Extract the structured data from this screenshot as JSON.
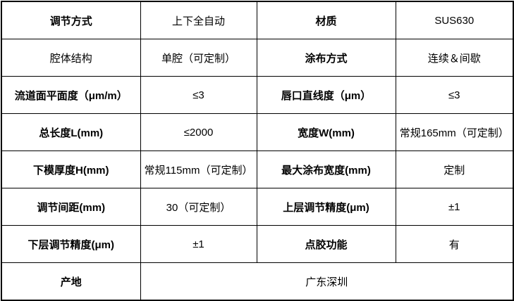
{
  "meta": {
    "description": "Product specification table (coating die / slot die parameters)",
    "background_color": "#ffffff",
    "border_color": "#000000",
    "text_color": "#000000"
  },
  "table": {
    "rows": [
      {
        "cells": [
          {
            "text": "调节方式"
          },
          {
            "text": "上下全自动"
          },
          {
            "text": "材质"
          },
          {
            "text": "SUS630"
          }
        ]
      },
      {
        "cells": [
          {
            "text": "腔体结构"
          },
          {
            "text": "单腔（可定制）"
          },
          {
            "text": "涂布方式"
          },
          {
            "text": "连续＆间歇"
          }
        ]
      },
      {
        "cells": [
          {
            "text": "流道面平面度（μm/m）"
          },
          {
            "text": "≤3"
          },
          {
            "text": "唇口直线度（μm）"
          },
          {
            "text": "≤3"
          }
        ]
      },
      {
        "cells": [
          {
            "text": "总长度L(mm)"
          },
          {
            "text": "≤2000"
          },
          {
            "text": "宽度W(mm)"
          },
          {
            "text": "常规165mm（可定制）"
          }
        ]
      },
      {
        "cells": [
          {
            "text": "下模厚度H(mm)"
          },
          {
            "text": "常规115mm（可定制）"
          },
          {
            "text": "最大涂布宽度(mm)"
          },
          {
            "text": "定制"
          }
        ]
      },
      {
        "cells": [
          {
            "text": "调节间距(mm)"
          },
          {
            "text": "30（可定制）"
          },
          {
            "text": "上层调节精度(μm)"
          },
          {
            "text": "±1"
          }
        ]
      },
      {
        "cells": [
          {
            "text": "下层调节精度(μm)"
          },
          {
            "text": "±1"
          },
          {
            "text": "点胶功能"
          },
          {
            "text": "有"
          }
        ]
      },
      {
        "cells": [
          {
            "text": "产地"
          },
          {
            "text": "广东深圳"
          }
        ]
      }
    ]
  }
}
